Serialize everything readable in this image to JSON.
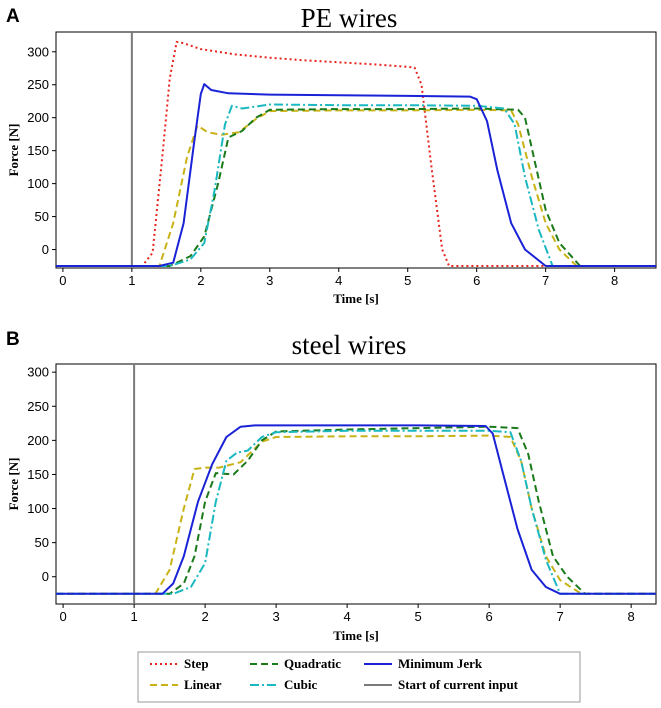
{
  "chart_data": [
    {
      "type": "line",
      "panel": "A",
      "title": "PE wires",
      "xlabel": "Time [s]",
      "ylabel": "Force [N]",
      "xlim": [
        -0.1,
        8.6
      ],
      "ylim": [
        -28,
        330
      ],
      "xticks": [
        0,
        1,
        2,
        3,
        4,
        5,
        6,
        7,
        8
      ],
      "yticks": [
        0,
        50,
        100,
        150,
        200,
        250,
        300
      ],
      "vline": {
        "name": "Start of current input",
        "x": 1.0
      },
      "series": [
        {
          "name": "Step",
          "color": "#e8231c",
          "style": "dotted",
          "points": [
            [
              -0.1,
              -25
            ],
            [
              1.15,
              -25
            ],
            [
              1.3,
              -5
            ],
            [
              1.45,
              150
            ],
            [
              1.55,
              260
            ],
            [
              1.65,
              315
            ],
            [
              1.75,
              313
            ],
            [
              2.0,
              304
            ],
            [
              2.5,
              296
            ],
            [
              3,
              291
            ],
            [
              3.5,
              287
            ],
            [
              4,
              284
            ],
            [
              4.5,
              281
            ],
            [
              5.0,
              277
            ],
            [
              5.1,
              276
            ],
            [
              5.2,
              250
            ],
            [
              5.35,
              120
            ],
            [
              5.5,
              0
            ],
            [
              5.6,
              -25
            ],
            [
              8.6,
              -25
            ]
          ]
        },
        {
          "name": "Linear",
          "color": "#c8b216",
          "style": "dashed",
          "points": [
            [
              -0.1,
              -25
            ],
            [
              1.4,
              -25
            ],
            [
              1.6,
              40
            ],
            [
              1.8,
              140
            ],
            [
              1.95,
              188
            ],
            [
              2.1,
              178
            ],
            [
              2.3,
              174
            ],
            [
              2.55,
              178
            ],
            [
              2.8,
              198
            ],
            [
              3.0,
              210
            ],
            [
              4,
              211
            ],
            [
              5,
              211
            ],
            [
              6,
              212
            ],
            [
              6.5,
              211
            ],
            [
              6.6,
              190
            ],
            [
              6.8,
              110
            ],
            [
              7.0,
              40
            ],
            [
              7.2,
              0
            ],
            [
              7.45,
              -25
            ],
            [
              8.6,
              -25
            ]
          ]
        },
        {
          "name": "Quadratic",
          "color": "#1a7a1a",
          "style": "dashed",
          "points": [
            [
              -0.1,
              -25
            ],
            [
              1.55,
              -25
            ],
            [
              1.85,
              -10
            ],
            [
              2.05,
              20
            ],
            [
              2.25,
              100
            ],
            [
              2.4,
              170
            ],
            [
              2.6,
              180
            ],
            [
              2.8,
              200
            ],
            [
              3.0,
              212
            ],
            [
              4,
              213
            ],
            [
              5,
              213
            ],
            [
              6,
              214
            ],
            [
              6.6,
              212
            ],
            [
              6.7,
              200
            ],
            [
              6.85,
              130
            ],
            [
              7.0,
              60
            ],
            [
              7.2,
              10
            ],
            [
              7.5,
              -25
            ],
            [
              8.6,
              -25
            ]
          ]
        },
        {
          "name": "Cubic",
          "color": "#1ab8c0",
          "style": "dashdot",
          "points": [
            [
              -0.1,
              -25
            ],
            [
              1.55,
              -25
            ],
            [
              1.85,
              -15
            ],
            [
              2.05,
              10
            ],
            [
              2.2,
              90
            ],
            [
              2.35,
              190
            ],
            [
              2.45,
              218
            ],
            [
              2.6,
              214
            ],
            [
              3.0,
              220
            ],
            [
              4,
              219
            ],
            [
              5,
              219
            ],
            [
              6,
              218
            ],
            [
              6.4,
              214
            ],
            [
              6.55,
              190
            ],
            [
              6.7,
              110
            ],
            [
              6.9,
              30
            ],
            [
              7.1,
              -25
            ],
            [
              8.6,
              -25
            ]
          ]
        },
        {
          "name": "Minimum Jerk",
          "color": "#1a22d6",
          "style": "solid",
          "points": [
            [
              -0.1,
              -25
            ],
            [
              1.4,
              -25
            ],
            [
              1.6,
              -20
            ],
            [
              1.75,
              40
            ],
            [
              1.9,
              160
            ],
            [
              2.0,
              236
            ],
            [
              2.05,
              251
            ],
            [
              2.15,
              242
            ],
            [
              2.4,
              237
            ],
            [
              3,
              235
            ],
            [
              4,
              234
            ],
            [
              5,
              233
            ],
            [
              5.9,
              232
            ],
            [
              6.0,
              228
            ],
            [
              6.15,
              195
            ],
            [
              6.3,
              120
            ],
            [
              6.5,
              40
            ],
            [
              6.7,
              0
            ],
            [
              7.0,
              -25
            ],
            [
              8.6,
              -25
            ]
          ]
        }
      ]
    },
    {
      "type": "line",
      "panel": "B",
      "title": "steel wires",
      "xlabel": "Time [s]",
      "ylabel": "Force [N]",
      "xlim": [
        -0.1,
        8.35
      ],
      "ylim": [
        -40,
        312
      ],
      "xticks": [
        0,
        1,
        2,
        3,
        4,
        5,
        6,
        7,
        8
      ],
      "yticks": [
        0,
        50,
        100,
        150,
        200,
        250,
        300
      ],
      "vline": {
        "name": "Start of current input",
        "x": 1.0
      },
      "series": [
        {
          "name": "Linear",
          "color": "#c8b216",
          "style": "dashed",
          "points": [
            [
              -0.1,
              -25
            ],
            [
              1.3,
              -25
            ],
            [
              1.5,
              10
            ],
            [
              1.7,
              100
            ],
            [
              1.85,
              158
            ],
            [
              2.0,
              160
            ],
            [
              2.2,
              160
            ],
            [
              2.5,
              168
            ],
            [
              2.8,
              198
            ],
            [
              3.0,
              205
            ],
            [
              4,
              206
            ],
            [
              5,
              206
            ],
            [
              6,
              207
            ],
            [
              6.3,
              205
            ],
            [
              6.45,
              170
            ],
            [
              6.6,
              100
            ],
            [
              6.8,
              30
            ],
            [
              7.0,
              -5
            ],
            [
              7.3,
              -25
            ],
            [
              8.35,
              -25
            ]
          ]
        },
        {
          "name": "Quadratic",
          "color": "#1a7a1a",
          "style": "dashed",
          "points": [
            [
              -0.1,
              -25
            ],
            [
              1.5,
              -25
            ],
            [
              1.7,
              -10
            ],
            [
              1.85,
              30
            ],
            [
              2.0,
              110
            ],
            [
              2.15,
              152
            ],
            [
              2.4,
              150
            ],
            [
              2.6,
              170
            ],
            [
              2.8,
              200
            ],
            [
              3.0,
              213
            ],
            [
              4,
              216
            ],
            [
              5,
              218
            ],
            [
              6,
              220
            ],
            [
              6.4,
              218
            ],
            [
              6.55,
              180
            ],
            [
              6.7,
              110
            ],
            [
              6.9,
              30
            ],
            [
              7.1,
              0
            ],
            [
              7.35,
              -25
            ],
            [
              8.35,
              -25
            ]
          ]
        },
        {
          "name": "Cubic",
          "color": "#1ab8c0",
          "style": "dashdot",
          "points": [
            [
              -0.1,
              -25
            ],
            [
              1.55,
              -25
            ],
            [
              1.8,
              -15
            ],
            [
              2.0,
              20
            ],
            [
              2.15,
              110
            ],
            [
              2.3,
              170
            ],
            [
              2.45,
              182
            ],
            [
              2.6,
              185
            ],
            [
              2.8,
              205
            ],
            [
              3.0,
              212
            ],
            [
              4,
              214
            ],
            [
              5,
              214
            ],
            [
              6,
              214
            ],
            [
              6.3,
              212
            ],
            [
              6.45,
              170
            ],
            [
              6.6,
              100
            ],
            [
              6.8,
              25
            ],
            [
              7.0,
              -25
            ],
            [
              8.35,
              -25
            ]
          ]
        },
        {
          "name": "Minimum Jerk",
          "color": "#1a22d6",
          "style": "solid",
          "points": [
            [
              -0.1,
              -25
            ],
            [
              1.4,
              -25
            ],
            [
              1.55,
              -10
            ],
            [
              1.7,
              30
            ],
            [
              1.9,
              110
            ],
            [
              2.1,
              165
            ],
            [
              2.3,
              205
            ],
            [
              2.5,
              220
            ],
            [
              2.7,
              222
            ],
            [
              3,
              222
            ],
            [
              4,
              222
            ],
            [
              5,
              222
            ],
            [
              5.95,
              221
            ],
            [
              6.05,
              210
            ],
            [
              6.2,
              150
            ],
            [
              6.4,
              70
            ],
            [
              6.6,
              10
            ],
            [
              6.8,
              -15
            ],
            [
              7.0,
              -25
            ],
            [
              8.35,
              -25
            ]
          ]
        }
      ]
    }
  ],
  "legend": {
    "items": [
      {
        "label": "Step",
        "color": "#e8231c",
        "style": "dotted"
      },
      {
        "label": "Linear",
        "color": "#c8b216",
        "style": "dashed"
      },
      {
        "label": "Quadratic",
        "color": "#1a7a1a",
        "style": "dashed"
      },
      {
        "label": "Cubic",
        "color": "#1ab8c0",
        "style": "dashdot"
      },
      {
        "label": "Minimum Jerk",
        "color": "#1a22d6",
        "style": "solid"
      },
      {
        "label": "Start of current input",
        "color": "#7a7a7a",
        "style": "solid"
      }
    ]
  }
}
